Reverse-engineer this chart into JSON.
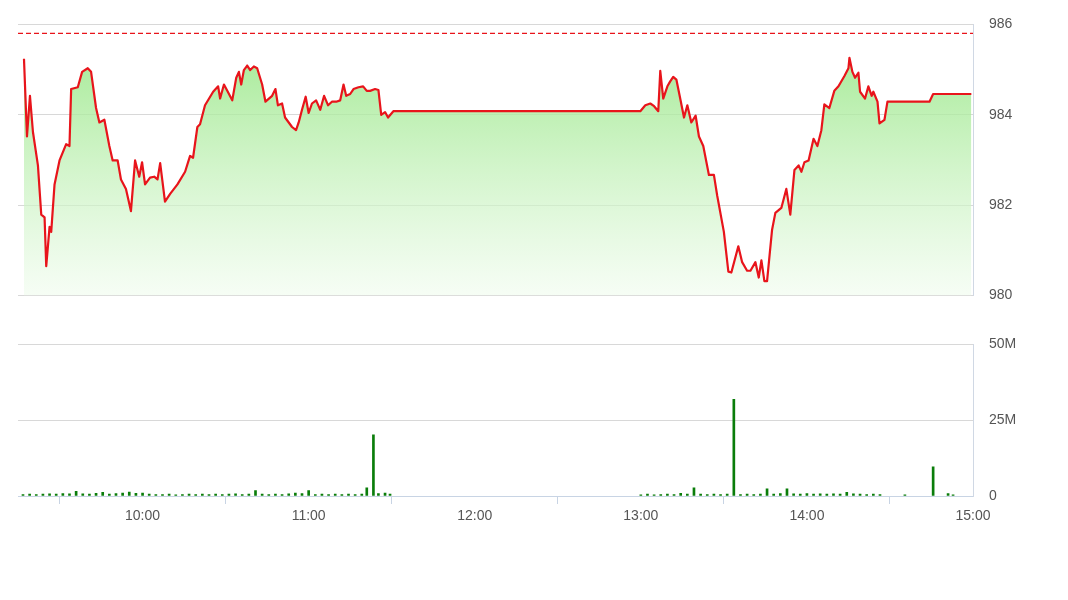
{
  "chart_data": [
    {
      "type": "area",
      "x": [
        9.286,
        9.304,
        9.322,
        9.34,
        9.37,
        9.39,
        9.41,
        9.42,
        9.44,
        9.45,
        9.47,
        9.5,
        9.54,
        9.56,
        9.57,
        9.61,
        9.636,
        9.67,
        9.69,
        9.72,
        9.74,
        9.77,
        9.8,
        9.82,
        9.85,
        9.87,
        9.9,
        9.93,
        9.955,
        9.98,
        9.997,
        10.015,
        10.045,
        10.07,
        10.09,
        10.106,
        10.135,
        10.166,
        10.21,
        10.256,
        10.286,
        10.304,
        10.33,
        10.346,
        10.376,
        10.425,
        10.455,
        10.467,
        10.49,
        10.51,
        10.54,
        10.564,
        10.58,
        10.594,
        10.61,
        10.63,
        10.648,
        10.67,
        10.69,
        10.72,
        10.74,
        10.78,
        10.8,
        10.815,
        10.84,
        10.858,
        10.9,
        10.924,
        10.94,
        10.96,
        10.982,
        11.0,
        11.02,
        11.045,
        11.07,
        11.093,
        11.117,
        11.14,
        11.166,
        11.19,
        11.21,
        11.226,
        11.25,
        11.27,
        11.3,
        11.328,
        11.35,
        11.37,
        11.4,
        11.42,
        11.437,
        11.46,
        11.478,
        11.51,
        12.997,
        13.027,
        13.057,
        13.08,
        13.105,
        13.117,
        13.135,
        13.16,
        13.177,
        13.195,
        13.214,
        13.235,
        13.26,
        13.28,
        13.304,
        13.33,
        13.35,
        13.376,
        13.41,
        13.44,
        13.46,
        13.5,
        13.527,
        13.545,
        13.587,
        13.61,
        13.64,
        13.66,
        13.69,
        13.71,
        13.726,
        13.744,
        13.76,
        13.79,
        13.81,
        13.846,
        13.876,
        13.9,
        13.925,
        13.95,
        13.967,
        13.985,
        14.01,
        14.04,
        14.063,
        14.087,
        14.105,
        14.135,
        14.165,
        14.19,
        14.226,
        14.25,
        14.256,
        14.274,
        14.29,
        14.31,
        14.32,
        14.35,
        14.37,
        14.39,
        14.4,
        14.425,
        14.437,
        14.467,
        14.485,
        14.738,
        14.76,
        14.99
      ],
      "series": [
        {
          "color": "#e8141b",
          "values": [
            985.24,
            983.52,
            984.42,
            983.62,
            982.88,
            981.79,
            981.73,
            980.65,
            981.52,
            981.41,
            982.46,
            982.99,
            983.35,
            983.31,
            984.57,
            984.61,
            984.95,
            985.03,
            984.95,
            984.15,
            983.83,
            983.89,
            983.31,
            982.99,
            982.99,
            982.57,
            982.36,
            981.87,
            982.99,
            982.63,
            982.95,
            982.46,
            982.61,
            982.63,
            982.57,
            982.93,
            982.08,
            982.25,
            982.46,
            982.74,
            983.09,
            983.05,
            983.73,
            983.79,
            984.21,
            984.51,
            984.63,
            984.36,
            984.67,
            984.53,
            984.32,
            984.82,
            984.95,
            984.67,
            984.99,
            985.09,
            984.99,
            985.07,
            985.03,
            984.67,
            984.29,
            984.42,
            984.57,
            984.21,
            984.25,
            983.94,
            983.73,
            983.66,
            983.83,
            984.11,
            984.4,
            984.04,
            984.25,
            984.32,
            984.11,
            984.42,
            984.21,
            984.29,
            984.29,
            984.32,
            984.67,
            984.42,
            984.46,
            984.57,
            984.61,
            984.63,
            984.53,
            984.53,
            984.57,
            984.55,
            984.0,
            984.06,
            983.94,
            984.08,
            984.08,
            984.21,
            984.25,
            984.19,
            984.08,
            984.97,
            984.36,
            984.63,
            984.74,
            984.84,
            984.78,
            984.4,
            983.94,
            984.21,
            983.83,
            983.98,
            983.52,
            983.31,
            982.67,
            982.67,
            982.21,
            981.41,
            980.53,
            980.51,
            981.09,
            980.74,
            980.55,
            980.55,
            980.74,
            980.4,
            980.78,
            980.32,
            980.32,
            981.45,
            981.83,
            981.94,
            982.36,
            981.79,
            982.78,
            982.88,
            982.74,
            982.95,
            982.99,
            983.47,
            983.31,
            983.66,
            984.23,
            984.15,
            984.53,
            984.63,
            984.86,
            985.03,
            985.26,
            984.95,
            984.82,
            984.93,
            984.51,
            984.36,
            984.63,
            984.42,
            984.51,
            984.29,
            983.81,
            983.89,
            984.29,
            984.29,
            984.46,
            984.46
          ]
        }
      ],
      "xlim": [
        9.25,
        15
      ],
      "ylim": [
        980,
        986
      ],
      "yticks": [
        980,
        982,
        984,
        986
      ],
      "grid": "y",
      "tick_labels": "y",
      "ref_lines": [
        {
          "axis": "y",
          "value": 985.8,
          "color": "#e8141b",
          "line_style": "dashed"
        }
      ]
    },
    {
      "type": "bar",
      "x": [
        9.28,
        9.32,
        9.36,
        9.4,
        9.44,
        9.48,
        9.52,
        9.56,
        9.6,
        9.64,
        9.68,
        9.72,
        9.76,
        9.8,
        9.84,
        9.88,
        9.92,
        9.96,
        10.0,
        10.04,
        10.08,
        10.12,
        10.16,
        10.2,
        10.24,
        10.28,
        10.32,
        10.36,
        10.4,
        10.44,
        10.48,
        10.52,
        10.56,
        10.6,
        10.64,
        10.68,
        10.72,
        10.76,
        10.8,
        10.84,
        10.88,
        10.92,
        10.96,
        11.0,
        11.04,
        11.08,
        11.12,
        11.16,
        11.2,
        11.24,
        11.28,
        11.32,
        11.35,
        11.39,
        11.42,
        11.46,
        11.49,
        13.0,
        13.04,
        13.08,
        13.12,
        13.16,
        13.2,
        13.24,
        13.28,
        13.32,
        13.36,
        13.4,
        13.44,
        13.48,
        13.52,
        13.56,
        13.6,
        13.64,
        13.68,
        13.72,
        13.76,
        13.8,
        13.84,
        13.88,
        13.92,
        13.96,
        14.0,
        14.04,
        14.08,
        14.12,
        14.16,
        14.2,
        14.24,
        14.28,
        14.32,
        14.36,
        14.4,
        14.44,
        14.59,
        14.76,
        14.85,
        14.88
      ],
      "series": [
        {
          "color": "#0a7d0a",
          "values": [
            0.5,
            0.6,
            0.5,
            0.6,
            0.7,
            0.6,
            0.8,
            0.7,
            1.5,
            0.7,
            0.6,
            0.9,
            1.2,
            0.6,
            0.8,
            1.0,
            1.3,
            0.9,
            1.0,
            0.6,
            0.5,
            0.5,
            0.6,
            0.4,
            0.5,
            0.6,
            0.5,
            0.6,
            0.5,
            0.6,
            0.5,
            0.6,
            0.7,
            0.5,
            0.6,
            1.8,
            0.6,
            0.5,
            0.6,
            0.5,
            0.7,
            1.0,
            0.8,
            1.8,
            0.5,
            0.6,
            0.5,
            0.6,
            0.5,
            0.6,
            0.5,
            0.6,
            2.7,
            20.2,
            0.8,
            1.0,
            0.6,
            0.4,
            0.6,
            0.4,
            0.5,
            0.6,
            0.5,
            0.9,
            0.6,
            2.7,
            0.6,
            0.5,
            0.6,
            0.5,
            0.6,
            31.9,
            0.5,
            0.6,
            0.5,
            0.6,
            2.4,
            0.6,
            0.8,
            2.4,
            0.7,
            0.6,
            0.8,
            0.6,
            0.7,
            0.6,
            0.7,
            0.6,
            1.2,
            0.7,
            0.6,
            0.5,
            0.6,
            0.5,
            0.4,
            9.6,
            0.8,
            0.4
          ]
        }
      ],
      "xlim": [
        9.25,
        15
      ],
      "xticks": [
        {
          "value": 10,
          "label": "10:00"
        },
        {
          "value": 11,
          "label": "11:00"
        },
        {
          "value": 12,
          "label": "12:00"
        },
        {
          "value": 13,
          "label": "13:00"
        },
        {
          "value": 14,
          "label": "14:00"
        },
        {
          "value": 15,
          "label": "15:00"
        }
      ],
      "ylim": [
        0,
        50
      ],
      "yticks": [
        0,
        {
          "value": 25,
          "label": "25M"
        },
        {
          "value": 50,
          "label": "50M"
        }
      ],
      "grid": "y"
    }
  ]
}
